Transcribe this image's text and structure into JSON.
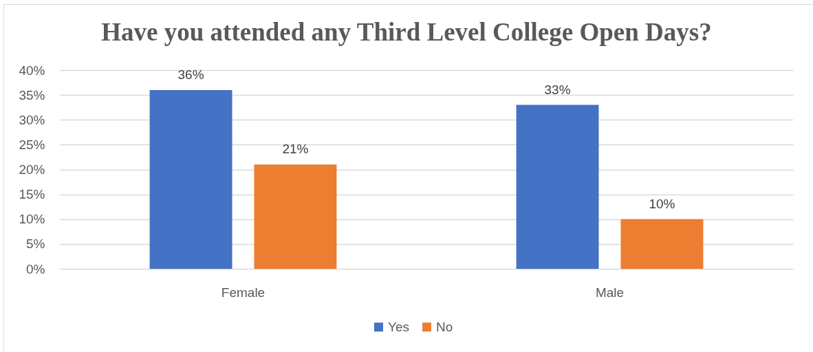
{
  "chart_data": {
    "type": "bar",
    "title": "Have you attended any Third Level College Open Days?",
    "categories": [
      "Female",
      "Male"
    ],
    "series": [
      {
        "name": "Yes",
        "color": "#4472c4",
        "values": [
          36,
          33
        ],
        "value_labels": [
          "36%",
          "33%"
        ]
      },
      {
        "name": "No",
        "color": "#ed7d31",
        "values": [
          21,
          10
        ],
        "value_labels": [
          "21%",
          "10%"
        ]
      }
    ],
    "ylim": [
      0,
      40
    ],
    "yticks": [
      {
        "value": 0,
        "label": "0%"
      },
      {
        "value": 5,
        "label": "5%"
      },
      {
        "value": 10,
        "label": "10%"
      },
      {
        "value": 15,
        "label": "15%"
      },
      {
        "value": 20,
        "label": "20%"
      },
      {
        "value": 25,
        "label": "25%"
      },
      {
        "value": 30,
        "label": "30%"
      },
      {
        "value": 35,
        "label": "35%"
      },
      {
        "value": 40,
        "label": "40%"
      }
    ],
    "grid": "y",
    "legend": "bottom"
  }
}
